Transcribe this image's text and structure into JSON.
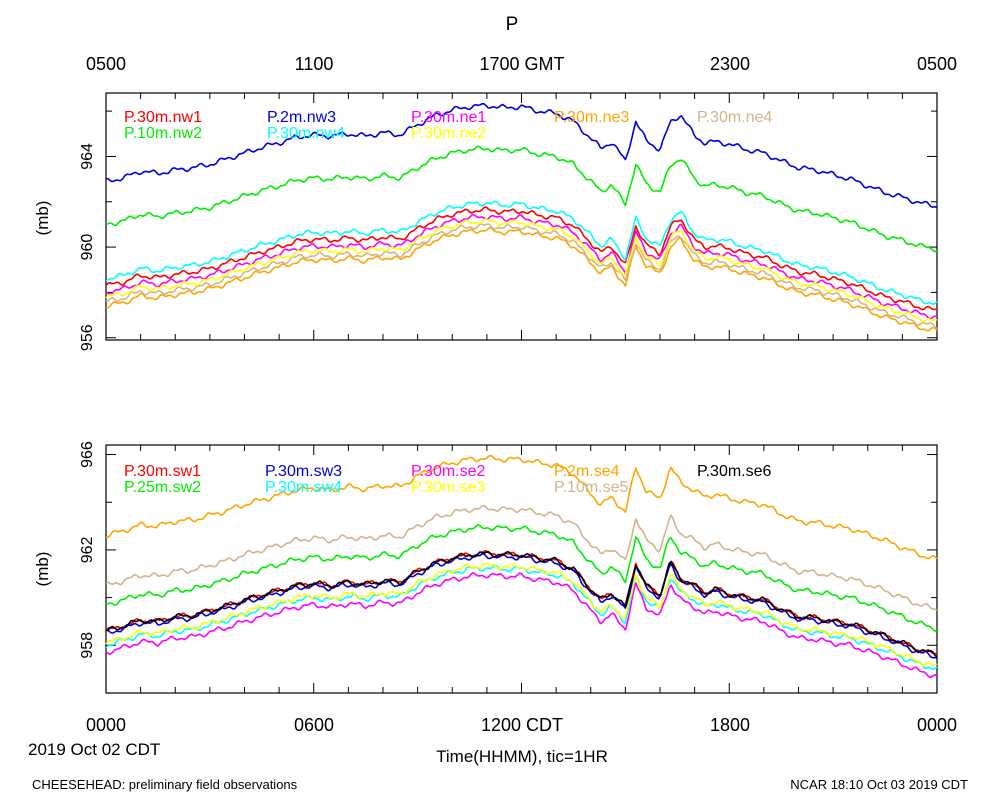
{
  "title": "P",
  "top_axis_labels": [
    "0500",
    "1100",
    "1700 GMT",
    "2300",
    "0500"
  ],
  "bottom_axis_labels": [
    "0000",
    "0600",
    "1200 CDT",
    "1800",
    "0000"
  ],
  "date_label": "2019 Oct 02 CDT",
  "xlabel": "Time(HHMM), tic=1HR",
  "footer_left": "CHEESEHEAD: preliminary field observations",
  "footer_right": "NCAR 18:10 Oct 03 2019 CDT",
  "chart_data": [
    {
      "type": "line",
      "panel": "top",
      "ylabel": "(mb)",
      "ylim": [
        955.9,
        966.8
      ],
      "xlim": [
        0,
        24
      ],
      "x_unit": "hours CDT",
      "yticks": [
        956,
        960,
        964
      ],
      "shape_x": [
        0,
        0.5,
        1,
        1.5,
        2,
        2.5,
        3,
        3.5,
        4,
        4.5,
        5,
        5.5,
        6,
        6.5,
        7,
        7.5,
        8,
        8.5,
        9,
        9.5,
        10,
        10.5,
        11,
        11.5,
        12,
        12.5,
        13,
        13.5,
        14,
        14.3,
        14.6,
        15,
        15.3,
        15.6,
        16,
        16.3,
        16.6,
        17,
        17.3,
        17.6,
        18,
        18.5,
        19,
        19.5,
        20,
        20.5,
        21,
        21.5,
        22,
        22.5,
        23,
        23.5,
        24
      ],
      "shape": [
        0,
        0.15,
        0.45,
        0.35,
        0.5,
        0.6,
        0.75,
        1.0,
        1.25,
        1.5,
        1.7,
        1.95,
        2.05,
        2.0,
        2.1,
        2.0,
        2.15,
        2.05,
        2.5,
        2.9,
        3.15,
        3.3,
        3.35,
        3.25,
        3.3,
        3.1,
        3.0,
        2.65,
        1.9,
        1.45,
        1.75,
        0.9,
        2.65,
        1.8,
        1.4,
        2.6,
        2.95,
        2.0,
        1.7,
        1.75,
        1.65,
        1.4,
        1.25,
        0.9,
        0.6,
        0.5,
        0.3,
        0.1,
        -0.2,
        -0.5,
        -0.7,
        -0.95,
        -1.1
      ],
      "series": [
        {
          "name": "P.30m.nw1",
          "color": "#ff0000",
          "base": 958.3
        },
        {
          "name": "P.2m.nw3",
          "color": "#0000dd",
          "base": 962.9
        },
        {
          "name": "P.30m.ne1",
          "color": "#ff00ff",
          "base": 958.0
        },
        {
          "name": "P.30m.ne3",
          "color": "#ffa500",
          "base": 957.4
        },
        {
          "name": "P.30m.ne4",
          "color": "#d2b48c",
          "base": 957.6
        },
        {
          "name": "P.10m.nw2",
          "color": "#00ee00",
          "base": 961.0
        },
        {
          "name": "P.30m.nw4",
          "color": "#00ffff",
          "base": 958.6
        },
        {
          "name": "P.30m.ne2",
          "color": "#ffff00",
          "base": 957.8
        }
      ]
    },
    {
      "type": "line",
      "panel": "bottom",
      "ylabel": "(mb)",
      "ylim": [
        956.0,
        966.4
      ],
      "xlim": [
        0,
        24
      ],
      "x_unit": "hours CDT",
      "yticks": [
        958,
        962,
        966
      ],
      "shape_x": [
        0,
        0.5,
        1,
        1.5,
        2,
        2.5,
        3,
        3.5,
        4,
        4.5,
        5,
        5.5,
        6,
        6.5,
        7,
        7.5,
        8,
        8.5,
        9,
        9.5,
        10,
        10.5,
        11,
        11.5,
        12,
        12.5,
        13,
        13.5,
        14,
        14.3,
        14.6,
        15,
        15.3,
        15.6,
        16,
        16.3,
        16.6,
        17,
        17.3,
        17.6,
        18,
        18.5,
        19,
        19.5,
        20,
        20.5,
        21,
        21.5,
        22,
        22.5,
        23,
        23.5,
        24
      ],
      "shape": [
        0,
        0.2,
        0.45,
        0.4,
        0.6,
        0.65,
        0.85,
        1.05,
        1.3,
        1.5,
        1.7,
        1.9,
        2.0,
        1.9,
        2.05,
        1.95,
        2.1,
        2.05,
        2.5,
        2.85,
        3.05,
        3.2,
        3.25,
        3.2,
        3.2,
        3.05,
        2.95,
        2.6,
        1.75,
        1.3,
        1.6,
        1.0,
        2.85,
        1.9,
        1.5,
        2.9,
        2.2,
        1.9,
        1.6,
        1.75,
        1.55,
        1.4,
        1.3,
        0.9,
        0.6,
        0.55,
        0.4,
        0.3,
        0.05,
        -0.2,
        -0.5,
        -0.8,
        -1.0
      ],
      "series": [
        {
          "name": "P.30m.sw1",
          "color": "#ff0000",
          "base": 958.6
        },
        {
          "name": "P.30m.sw3",
          "color": "#0000dd",
          "base": 958.5
        },
        {
          "name": "P.30m.se2",
          "color": "#ff00ff",
          "base": 957.7
        },
        {
          "name": "P.2m.se4",
          "color": "#ffa500",
          "base": 962.6
        },
        {
          "name": "P.30m.se6",
          "color": "#000000",
          "base": 958.6
        },
        {
          "name": "P.25m.sw2",
          "color": "#00ee00",
          "base": 959.7
        },
        {
          "name": "P.30m.sw4",
          "color": "#00ffff",
          "base": 958.0
        },
        {
          "name": "P.30m.se3",
          "color": "#ffff00",
          "base": 958.1
        },
        {
          "name": "P.10m.se5",
          "color": "#d2b48c",
          "base": 960.5
        }
      ]
    }
  ]
}
